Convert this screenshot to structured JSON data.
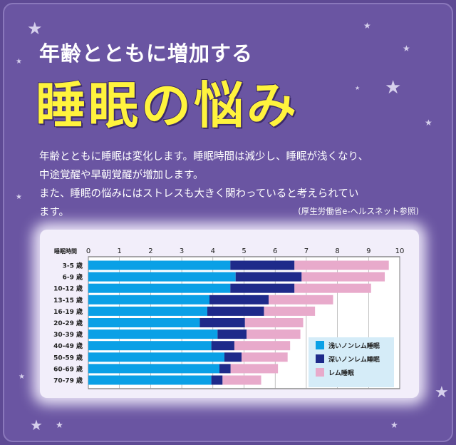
{
  "header": {
    "subtitle": "年齢とともに増加する",
    "title": "睡眠の悩み"
  },
  "body": {
    "lines": [
      "年齢とともに睡眠は変化します。睡眠時間は減少し、睡眠が浅くなり、",
      "中途覚醒や早朝覚醒が増加します。",
      "また、睡眠の悩みにはストレスも大きく関わっていると考えられてい",
      "ます。"
    ],
    "source": "(厚生労働省e-ヘルスネット参照)"
  },
  "icons": [
    "star-icon"
  ],
  "chart_data": {
    "type": "bar",
    "orientation": "horizontal",
    "stacked": true,
    "xlabel": "睡眠時間",
    "xlim": [
      0,
      10
    ],
    "xticks": [
      "0",
      "1",
      "2",
      "3",
      "4",
      "5",
      "6",
      "7",
      "8",
      "9",
      "10"
    ],
    "grid": true,
    "legend_placement": "bottom-right",
    "categories": [
      "3-5 歳",
      "6-9 歳",
      "10-12 歳",
      "13-15 歳",
      "16-19 歳",
      "20-29 歳",
      "30-39 歳",
      "40-49 歳",
      "50-59 歳",
      "60-69 歳",
      "70-79 歳"
    ],
    "series": [
      {
        "name": "浅いノンレム睡眠",
        "color": "#0aa0e6",
        "values": [
          4.56,
          4.73,
          4.56,
          3.89,
          3.82,
          3.58,
          4.15,
          3.95,
          4.37,
          4.21,
          3.95
        ]
      },
      {
        "name": "深いノンレム睡眠",
        "color": "#1e2a8a",
        "values": [
          2.06,
          2.12,
          2.06,
          1.9,
          1.82,
          1.45,
          0.93,
          0.74,
          0.55,
          0.36,
          0.36
        ]
      },
      {
        "name": "レム睡眠",
        "color": "#e8aacb",
        "values": [
          3.03,
          2.67,
          2.46,
          2.07,
          1.64,
          1.87,
          1.73,
          1.79,
          1.48,
          1.52,
          1.24
        ]
      }
    ]
  }
}
